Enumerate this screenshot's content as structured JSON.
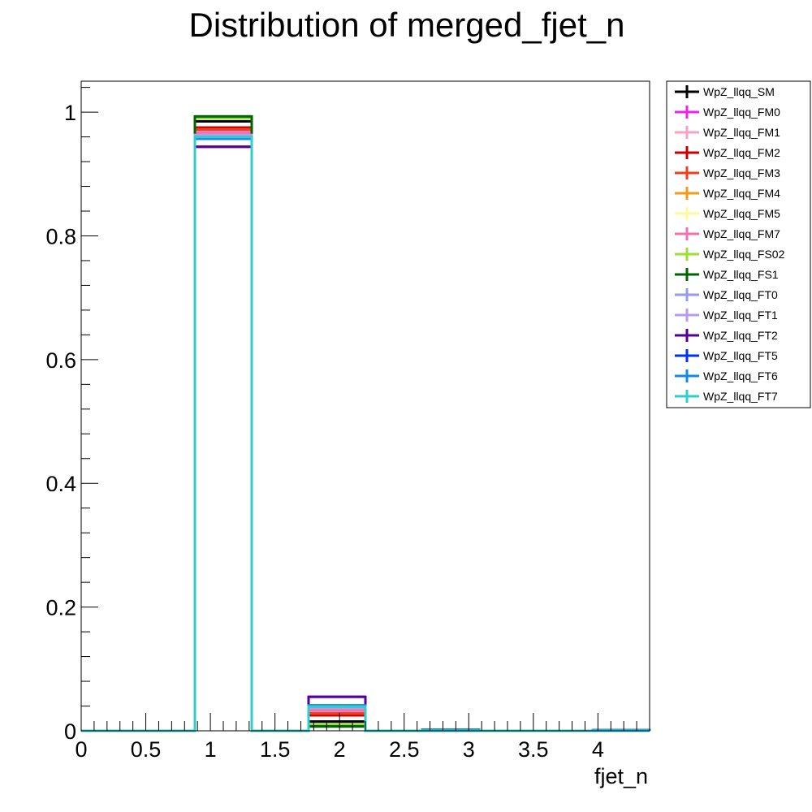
{
  "chart_data": {
    "type": "histogram",
    "title": "Distribution of merged_fjet_n",
    "xlabel": "fjet_n",
    "ylabel": "",
    "xlim": [
      0,
      4.4
    ],
    "ylim": [
      0,
      1.05
    ],
    "x_ticks": [
      "0",
      "0.5",
      "1",
      "1.5",
      "2",
      "2.5",
      "3",
      "3.5",
      "4"
    ],
    "y_ticks": [
      "0",
      "0.2",
      "0.4",
      "0.6",
      "0.8",
      "1"
    ],
    "bins": [
      0,
      0.44,
      0.88,
      1.32,
      1.76,
      2.2,
      2.64,
      3.08,
      3.52,
      3.96,
      4.4
    ],
    "legend_position": "top-right outside",
    "series": [
      {
        "name": "WpZ_llqq_SM",
        "color": "#000000",
        "values": [
          0,
          0,
          0.985,
          0,
          0.015,
          0,
          0,
          0,
          0,
          0
        ]
      },
      {
        "name": "WpZ_llqq_FM0",
        "color": "#ee22ee",
        "values": [
          0,
          0,
          0.97,
          0,
          0.03,
          0,
          0,
          0,
          0,
          0
        ]
      },
      {
        "name": "WpZ_llqq_FM1",
        "color": "#f7a1c9",
        "values": [
          0,
          0,
          0.968,
          0,
          0.032,
          0,
          0,
          0,
          0,
          0
        ]
      },
      {
        "name": "WpZ_llqq_FM2",
        "color": "#c80000",
        "values": [
          0,
          0,
          0.975,
          0,
          0.025,
          0,
          0,
          0,
          0,
          0
        ]
      },
      {
        "name": "WpZ_llqq_FM3",
        "color": "#f23f1a",
        "values": [
          0,
          0,
          0.972,
          0,
          0.028,
          0,
          0,
          0,
          0,
          0
        ]
      },
      {
        "name": "WpZ_llqq_FM4",
        "color": "#f39a1a",
        "values": [
          0,
          0,
          0.965,
          0,
          0.035,
          0,
          0,
          0,
          0,
          0
        ]
      },
      {
        "name": "WpZ_llqq_FM5",
        "color": "#fbfb9a",
        "values": [
          0,
          0,
          0.966,
          0,
          0.034,
          0,
          0,
          0,
          0,
          0
        ]
      },
      {
        "name": "WpZ_llqq_FM7",
        "color": "#f36fb0",
        "values": [
          0,
          0,
          0.967,
          0,
          0.033,
          0,
          0,
          0,
          0,
          0
        ]
      },
      {
        "name": "WpZ_llqq_FS02",
        "color": "#99e033",
        "values": [
          0,
          0,
          0.99,
          0,
          0.01,
          0,
          0,
          0,
          0,
          0
        ]
      },
      {
        "name": "WpZ_llqq_FS1",
        "color": "#006400",
        "values": [
          0,
          0,
          0.993,
          0,
          0.007,
          0,
          0,
          0,
          0,
          0
        ]
      },
      {
        "name": "WpZ_llqq_FT0",
        "color": "#9999ee",
        "values": [
          0,
          0,
          0.962,
          0,
          0.038,
          0,
          0,
          0,
          0,
          0
        ]
      },
      {
        "name": "WpZ_llqq_FT1",
        "color": "#bb99ee",
        "values": [
          0,
          0,
          0.963,
          0,
          0.037,
          0,
          0,
          0,
          0,
          0
        ]
      },
      {
        "name": "WpZ_llqq_FT2",
        "color": "#550099",
        "values": [
          0,
          0,
          0.944,
          0,
          0.055,
          0,
          0,
          0,
          0,
          0
        ]
      },
      {
        "name": "WpZ_llqq_FT5",
        "color": "#0033ee",
        "values": [
          0,
          0,
          0.958,
          0,
          0.04,
          0,
          0.002,
          0,
          0,
          0.001
        ]
      },
      {
        "name": "WpZ_llqq_FT6",
        "color": "#1188ee",
        "values": [
          0,
          0,
          0.957,
          0,
          0.041,
          0,
          0.002,
          0,
          0,
          0.001
        ]
      },
      {
        "name": "WpZ_llqq_FT7",
        "color": "#33cccc",
        "values": [
          0,
          0,
          0.96,
          0,
          0.039,
          0,
          0,
          0,
          0,
          0
        ]
      }
    ]
  }
}
